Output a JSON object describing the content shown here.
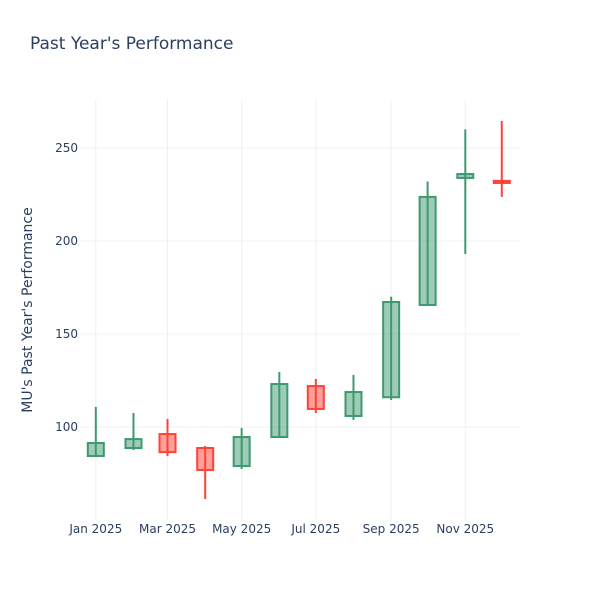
{
  "chart_data": {
    "type": "candlestick",
    "title": "Past Year's Performance",
    "xlabel": "",
    "ylabel": "MU's Past Year's Performance",
    "ylim": [
      50,
      275.8
    ],
    "xlim": [
      "2024-12-19",
      "2025-12-16"
    ],
    "grid": true,
    "legend": "none",
    "colors": {
      "increasing": "#3D9970",
      "decreasing": "#FF4136"
    },
    "x_ticks": [
      {
        "date": "2025-01-01",
        "label": "Jan 2025"
      },
      {
        "date": "2025-03-01",
        "label": "Mar 2025"
      },
      {
        "date": "2025-05-01",
        "label": "May 2025"
      },
      {
        "date": "2025-07-01",
        "label": "Jul 2025"
      },
      {
        "date": "2025-09-01",
        "label": "Sep 2025"
      },
      {
        "date": "2025-11-01",
        "label": "Nov 2025"
      }
    ],
    "y_ticks": [
      100,
      150,
      200,
      250
    ],
    "candles": [
      {
        "date": "2025-01-01",
        "open": 84.4,
        "high": 110.8,
        "low": 84.4,
        "close": 91.4
      },
      {
        "date": "2025-02-01",
        "open": 88.7,
        "high": 107.5,
        "low": 87.6,
        "close": 93.5
      },
      {
        "date": "2025-03-01",
        "open": 96.2,
        "high": 104.3,
        "low": 84.4,
        "close": 86.5
      },
      {
        "date": "2025-04-01",
        "open": 88.7,
        "high": 89.8,
        "low": 61.3,
        "close": 76.9
      },
      {
        "date": "2025-05-01",
        "open": 79.0,
        "high": 99.5,
        "low": 77.4,
        "close": 94.6
      },
      {
        "date": "2025-06-01",
        "open": 94.6,
        "high": 129.6,
        "low": 94.6,
        "close": 123.1
      },
      {
        "date": "2025-07-01",
        "open": 122.0,
        "high": 125.8,
        "low": 107.5,
        "close": 109.7
      },
      {
        "date": "2025-08-01",
        "open": 105.9,
        "high": 128.0,
        "low": 103.8,
        "close": 118.8
      },
      {
        "date": "2025-09-01",
        "open": 116.0,
        "high": 170.0,
        "low": 114.5,
        "close": 167.2
      },
      {
        "date": "2025-10-01",
        "open": 165.6,
        "high": 232.0,
        "low": 165.6,
        "close": 223.7
      },
      {
        "date": "2025-11-01",
        "open": 233.9,
        "high": 260.0,
        "low": 193.0,
        "close": 236.0
      },
      {
        "date": "2025-12-01",
        "open": 232.3,
        "high": 264.5,
        "low": 223.7,
        "close": 231.2
      }
    ]
  }
}
